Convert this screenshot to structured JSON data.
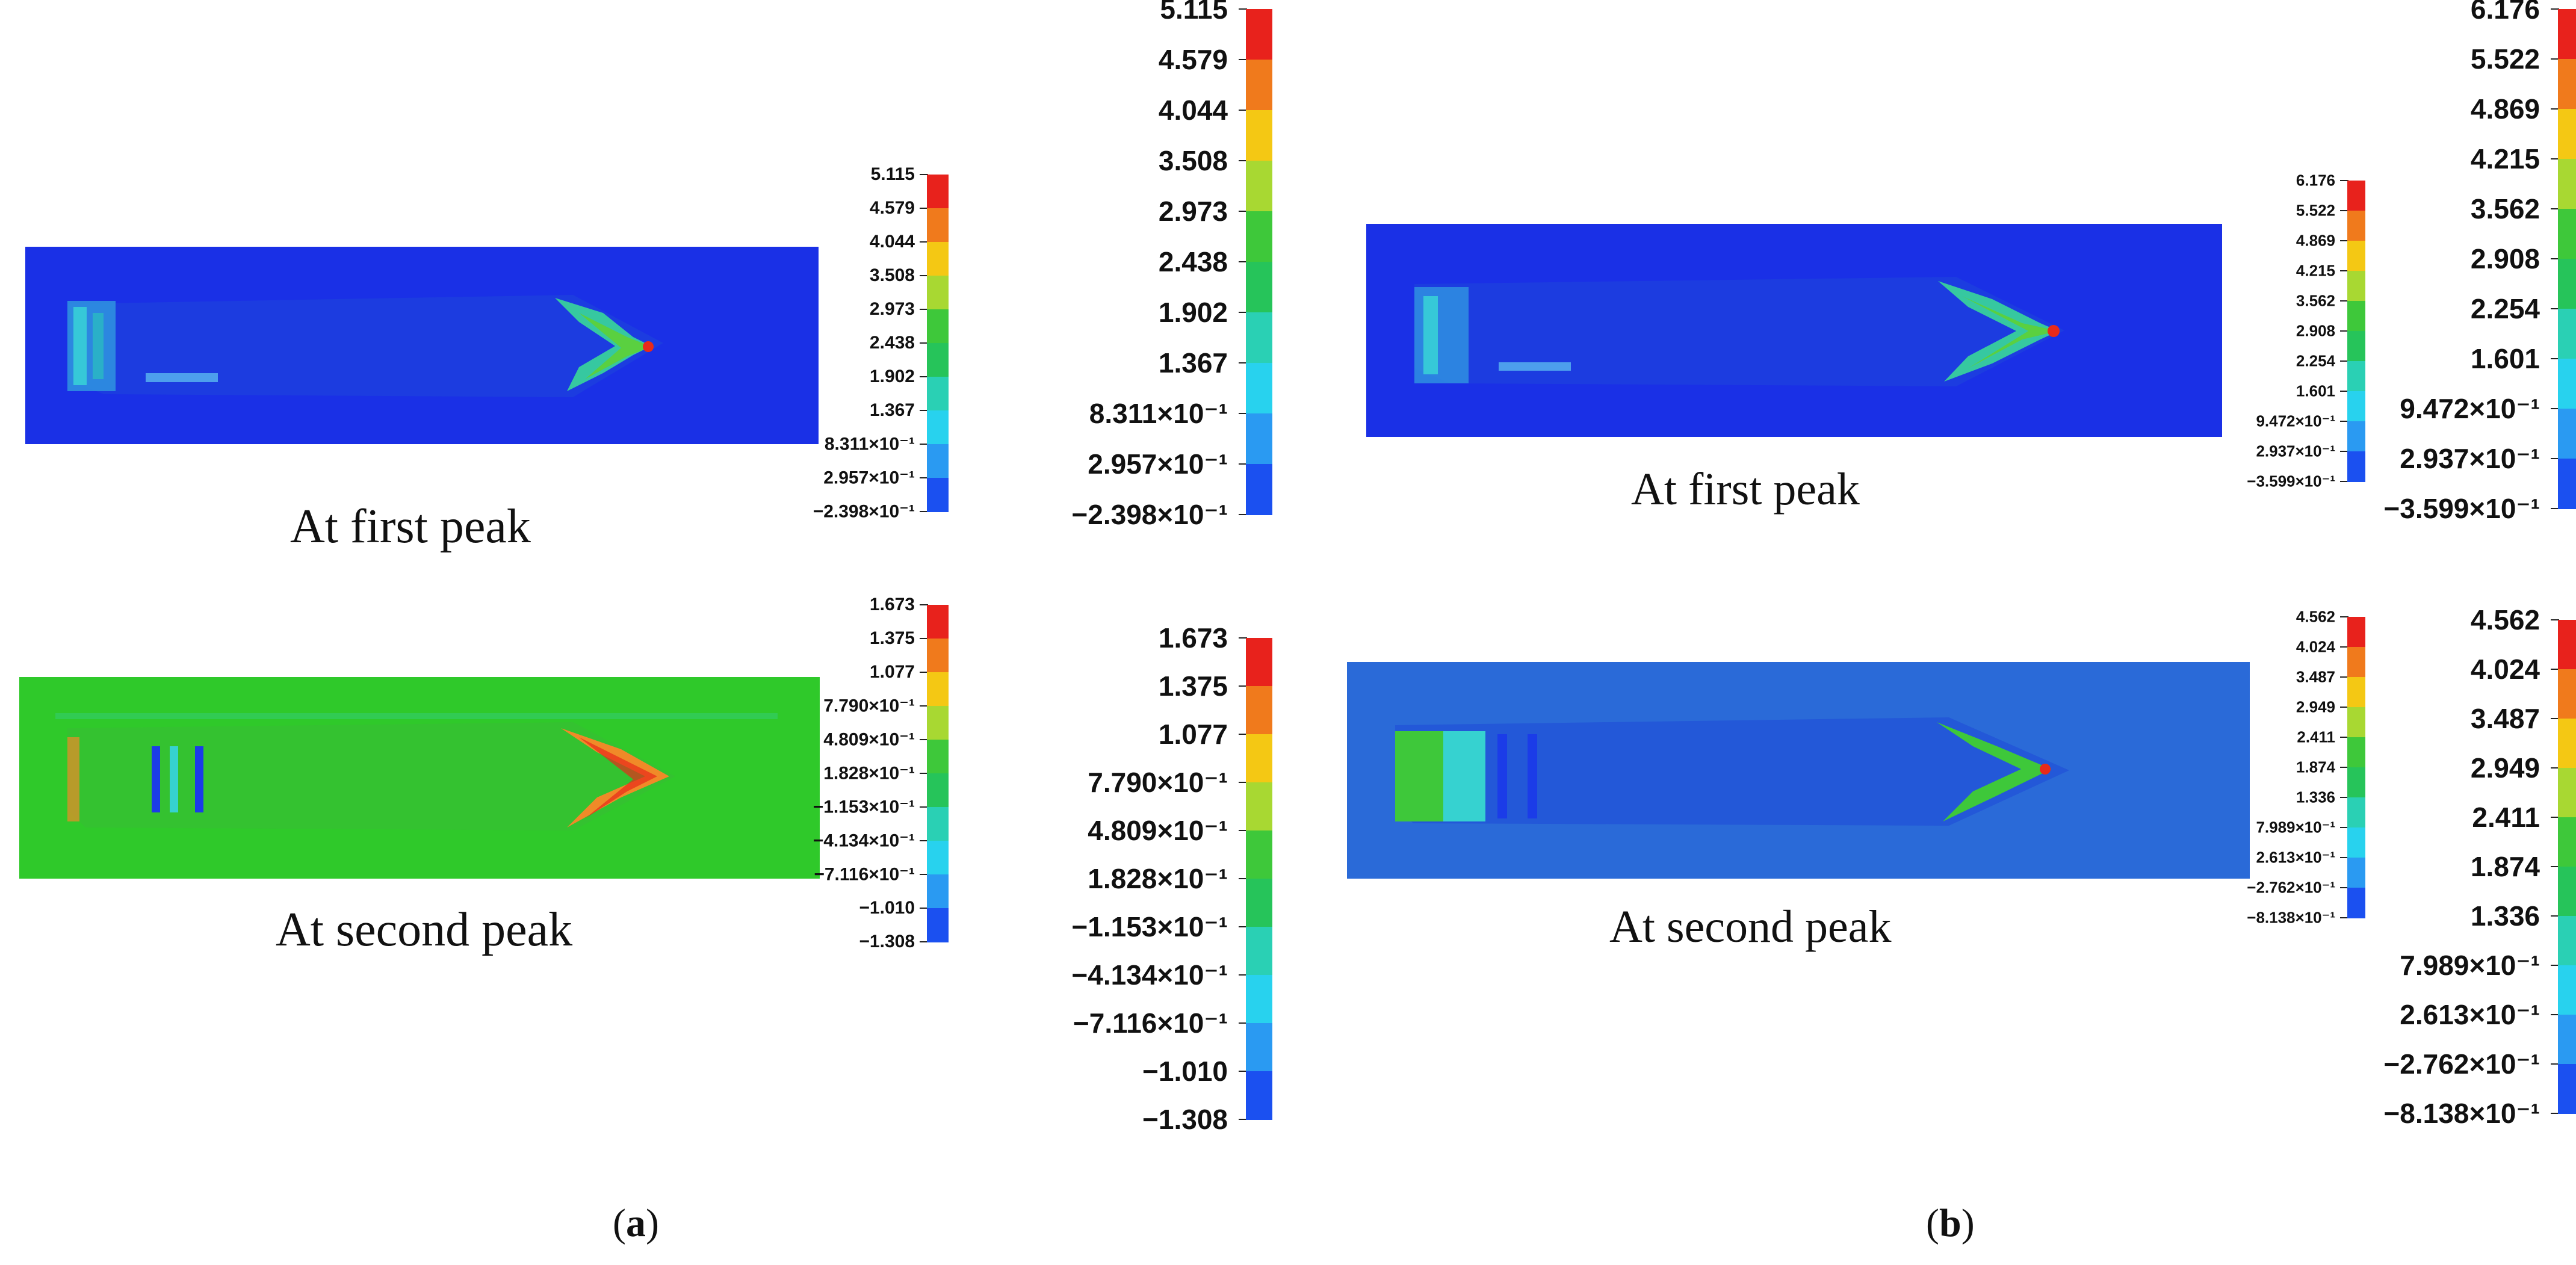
{
  "panels": {
    "a": {
      "label": "a",
      "first": {
        "caption": "At first peak",
        "levels": [
          "5.115",
          "4.579",
          "4.044",
          "3.508",
          "2.973",
          "2.438",
          "1.902",
          "1.367",
          "8.311×10⁻¹",
          "2.957×10⁻¹",
          "−2.398×10⁻¹"
        ]
      },
      "second": {
        "caption": "At second peak",
        "levels": [
          "1.673",
          "1.375",
          "1.077",
          "7.790×10⁻¹",
          "4.809×10⁻¹",
          "1.828×10⁻¹",
          "−1.153×10⁻¹",
          "−4.134×10⁻¹",
          "−7.116×10⁻¹",
          "−1.010",
          "−1.308"
        ]
      }
    },
    "b": {
      "label": "b",
      "first": {
        "caption": "At first peak",
        "levels": [
          "6.176",
          "5.522",
          "4.869",
          "4.215",
          "3.562",
          "2.908",
          "2.254",
          "1.601",
          "9.472×10⁻¹",
          "2.937×10⁻¹",
          "−3.599×10⁻¹"
        ]
      },
      "second": {
        "caption": "At second peak",
        "levels": [
          "4.562",
          "4.024",
          "3.487",
          "2.949",
          "2.411",
          "1.874",
          "1.336",
          "7.989×10⁻¹",
          "2.613×10⁻¹",
          "−2.762×10⁻¹",
          "−8.138×10⁻¹"
        ]
      }
    }
  },
  "colorbar_colors": [
    "#e8221c",
    "#f07a1c",
    "#f4c814",
    "#a8d832",
    "#3ec83a",
    "#26c45a",
    "#2ad0b4",
    "#28d2ee",
    "#2a9af2",
    "#1b50f0"
  ],
  "contour_colors": {
    "deep_blue": "#1932e6",
    "mid_blue": "#2a6ad8",
    "green": "#2fc92a",
    "cyan": "#36d2d0",
    "red": "#e82a1a",
    "orange": "#f08a28"
  }
}
